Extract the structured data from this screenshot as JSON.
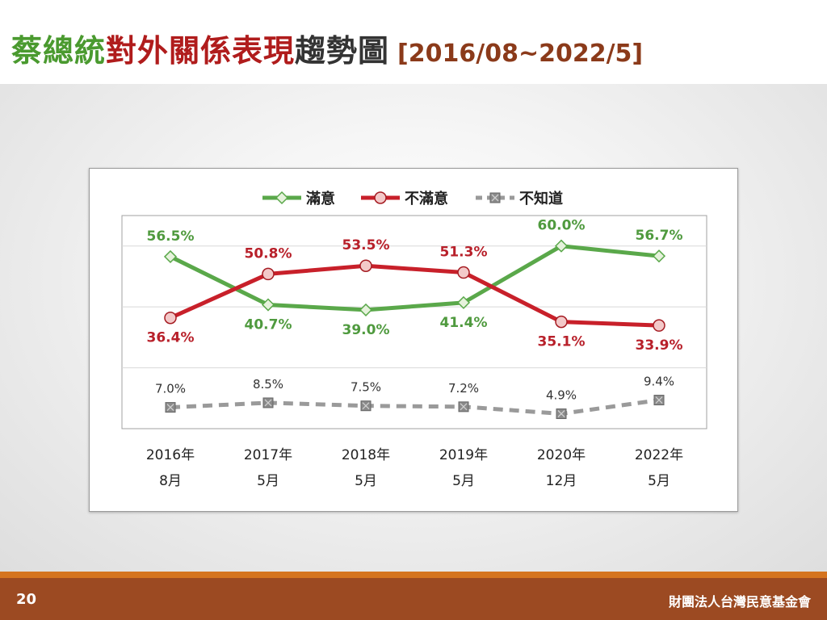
{
  "slide": {
    "title_parts": [
      "蔡總統",
      "對外關係表現",
      "趨勢圖",
      "[2016/08~2022/5]"
    ],
    "page_number": "20",
    "organization": "財團法人台灣民意基金會",
    "colors": {
      "green": "#5aa84a",
      "red": "#c8202a",
      "gray": "#9a9a9a",
      "footer": "#9c4a22",
      "footer_strip": "#d5741f"
    }
  },
  "chart_data": {
    "type": "line",
    "categories": [
      [
        "2016年",
        "8月"
      ],
      [
        "2017年",
        "5月"
      ],
      [
        "2018年",
        "5月"
      ],
      [
        "2019年",
        "5月"
      ],
      [
        "2020年",
        "12月"
      ],
      [
        "2022年",
        "5月"
      ]
    ],
    "ylim": [
      0,
      70
    ],
    "grid": true,
    "legend_position": "top",
    "series": [
      {
        "name": "滿意",
        "color": "#5aa84a",
        "marker": "diamond",
        "dashed": false,
        "values": [
          56.5,
          40.7,
          39.0,
          41.4,
          60.0,
          56.7
        ],
        "labels": [
          "56.5%",
          "40.7%",
          "39.0%",
          "41.4%",
          "60.0%",
          "56.7%"
        ]
      },
      {
        "name": "不滿意",
        "color": "#c8202a",
        "marker": "circle",
        "dashed": false,
        "values": [
          36.4,
          50.8,
          53.5,
          51.3,
          35.1,
          33.9
        ],
        "labels": [
          "36.4%",
          "50.8%",
          "53.5%",
          "51.3%",
          "35.1%",
          "33.9%"
        ]
      },
      {
        "name": "不知道",
        "color": "#9a9a9a",
        "marker": "x-square",
        "dashed": true,
        "values": [
          7.0,
          8.5,
          7.5,
          7.2,
          4.9,
          9.4
        ],
        "labels": [
          "7.0%",
          "8.5%",
          "7.5%",
          "7.2%",
          "4.9%",
          "9.4%"
        ]
      }
    ]
  }
}
